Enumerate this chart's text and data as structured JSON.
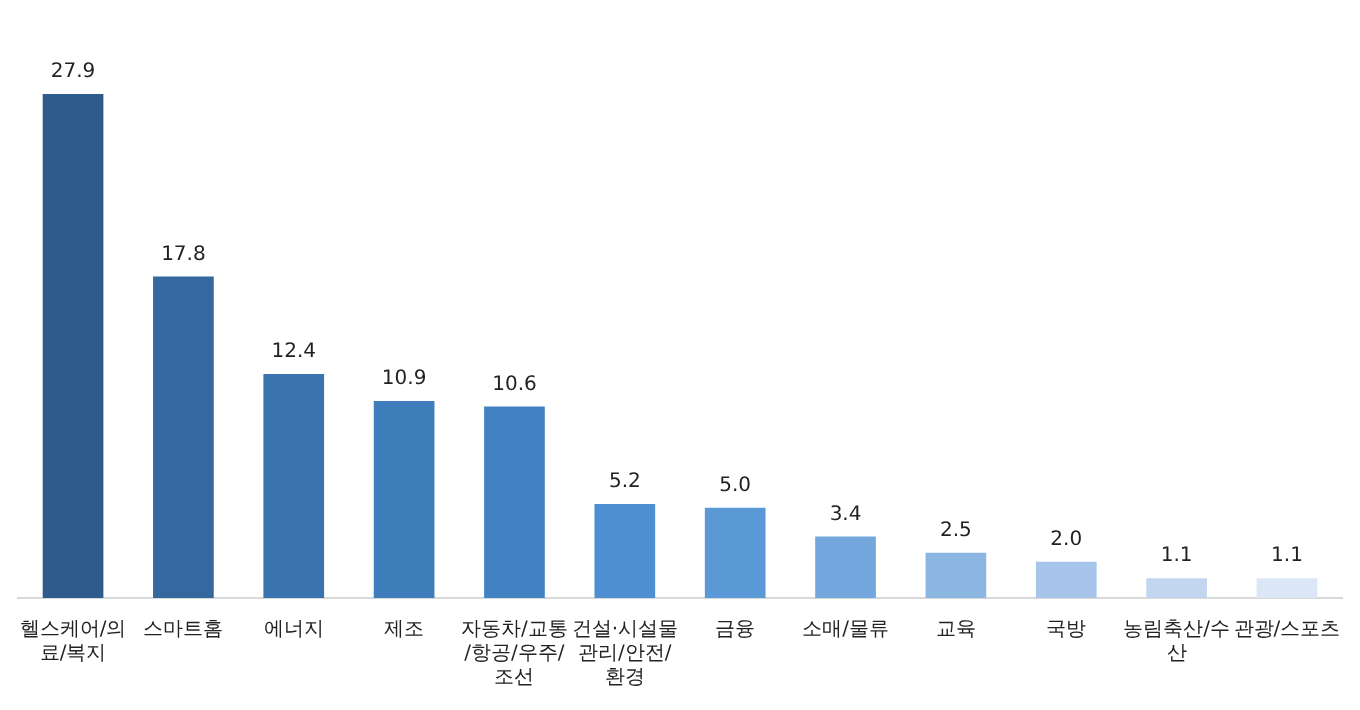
{
  "chart_data": {
    "type": "bar",
    "categories": [
      "헬스케어/의료/복지",
      "스마트홈",
      "에너지",
      "제조",
      "자동차/교통/항공/우주/조선",
      "건설·시설물관리/안전/환경",
      "금융",
      "소매/물류",
      "교육",
      "국방",
      "농림축산/수산",
      "관광/스포츠"
    ],
    "values": [
      27.9,
      17.8,
      12.4,
      10.9,
      10.6,
      5.2,
      5.0,
      3.4,
      2.5,
      2.0,
      1.1,
      1.1
    ],
    "colors": [
      "#2f5b8c",
      "#34689e",
      "#3a74ae",
      "#3f7dbb",
      "#4282c2",
      "#4d8fd0",
      "#5a98d6",
      "#74a7dd",
      "#8cb6e2",
      "#a7c5ea",
      "#c3d6f0",
      "#dbe6f6"
    ],
    "value_labels": [
      "27.9",
      "17.8",
      "12.4",
      "10.9",
      "10.6",
      "5.2",
      "5.0",
      "3.4",
      "2.5",
      "2.0",
      "1.1",
      "1.1"
    ],
    "tick_labels": "x",
    "grid": false,
    "legend": false
  }
}
